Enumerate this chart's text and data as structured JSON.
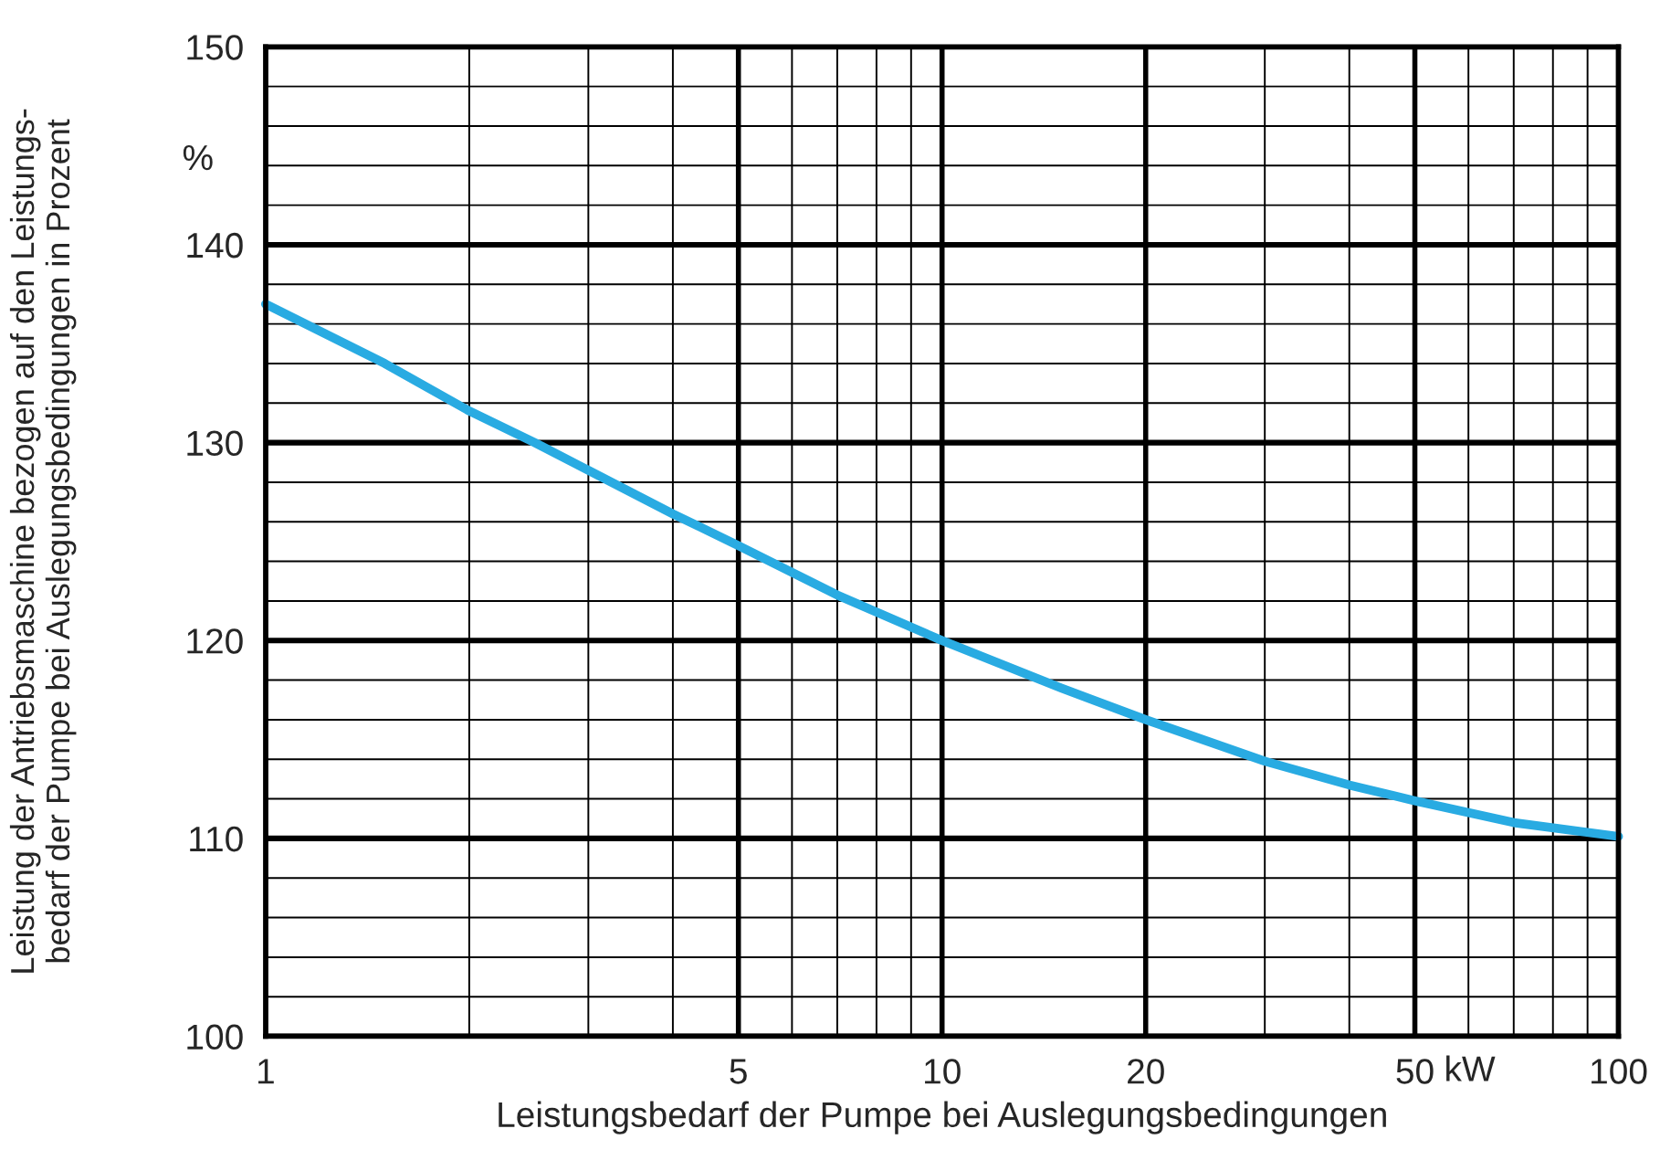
{
  "chart_data": {
    "type": "line",
    "xlabel": "Leistungsbedarf der Pumpe bei Auslegungsbedingungen",
    "ylabel": "Leistung der Antriebsmaschine bezogen auf den Leistungs-\nbedarf der Pumpe bei Auslegungsbedingungen in Prozent",
    "annotations": [
      "%",
      "kW"
    ],
    "series": [
      {
        "color": "#29abe2",
        "x": [
          1,
          1.5,
          2,
          2.5,
          3,
          4,
          5,
          7,
          10,
          15,
          20,
          30,
          40,
          50,
          70,
          100
        ],
        "values": [
          137,
          134,
          131.6,
          130,
          128.6,
          126.4,
          124.8,
          122.3,
          120,
          117.6,
          116,
          113.9,
          112.7,
          111.9,
          110.8,
          110.1
        ]
      }
    ],
    "log": "x",
    "xlim": [
      1,
      100
    ],
    "xticks": [
      1,
      5,
      10,
      20,
      50,
      100
    ],
    "ylim": [
      100,
      150
    ],
    "yticks": [
      100,
      110,
      120,
      130,
      140,
      150
    ],
    "grid": true,
    "marker": "none",
    "line_style": "solid",
    "legend": false
  }
}
